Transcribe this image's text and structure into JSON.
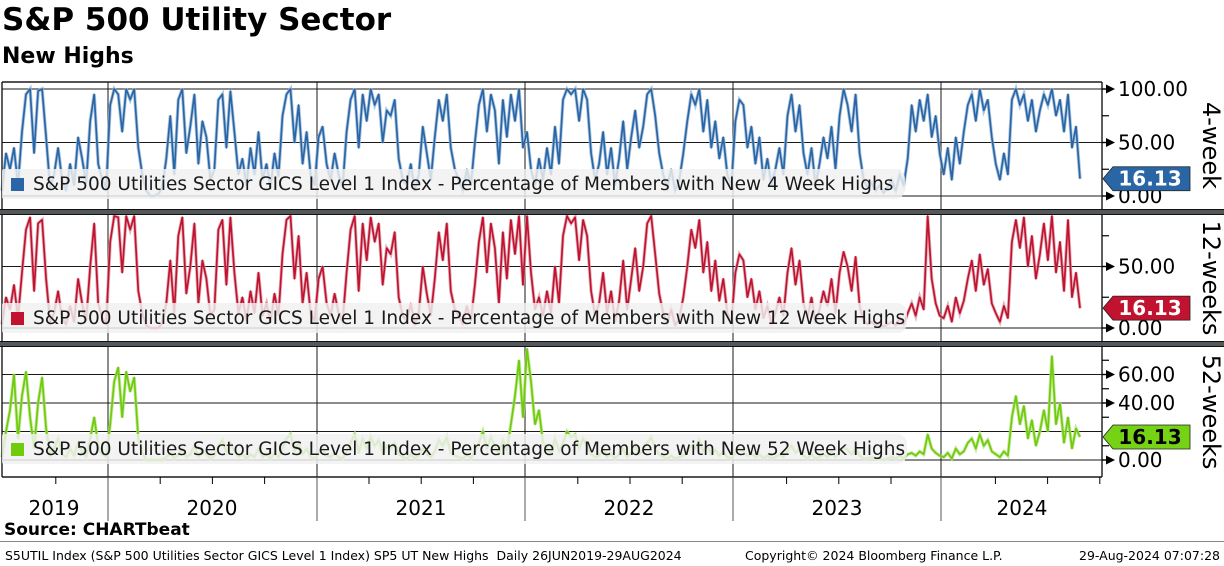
{
  "header": {
    "title": "S&P 500 Utility Sector",
    "subtitle": "New Highs"
  },
  "source_line": "Source: CHARTbeat",
  "footer": {
    "left": "S5UTIL Index (S&P 500 Utilities Sector GICS Level 1 Index) SP5 UT New Highs  Daily 26JUN2019-29AUG2024",
    "center": "Copyright© 2024 Bloomberg Finance L.P.",
    "right": "29-Aug-2024 07:07:28"
  },
  "x_axis": {
    "years": [
      "2019",
      "2020",
      "2021",
      "2022",
      "2023",
      "2024"
    ]
  },
  "chart_data": [
    {
      "type": "line",
      "panel_label": "4-week",
      "legend": "S&P 500 Utilities Sector GICS Level 1 Index - Percentage of Members with New 4 Week Highs",
      "color": "#2a66a5",
      "color_light": "#93b4d6",
      "tag_fill": "#2a66a5",
      "tag_text_color": "#ffffff",
      "last_label": "16.13",
      "last_value": 16.13,
      "ylim": [
        0,
        106
      ],
      "gridlines": [
        0,
        50,
        100
      ],
      "ytick_labels": [
        [
          0,
          "0.00"
        ],
        [
          50,
          "50.00"
        ],
        [
          100,
          "100.00"
        ]
      ],
      "yticks_minor": [
        25,
        75
      ],
      "values": [
        5,
        40,
        25,
        45,
        10,
        60,
        95,
        100,
        40,
        98,
        100,
        55,
        8,
        20,
        45,
        15,
        5,
        30,
        10,
        55,
        35,
        12,
        70,
        95,
        30,
        15,
        8,
        85,
        100,
        95,
        60,
        100,
        90,
        100,
        45,
        20,
        5,
        0,
        0,
        2,
        8,
        35,
        75,
        20,
        90,
        100,
        40,
        65,
        95,
        30,
        70,
        55,
        15,
        25,
        90,
        95,
        45,
        98,
        60,
        20,
        35,
        10,
        45,
        20,
        60,
        15,
        30,
        8,
        40,
        18,
        75,
        95,
        100,
        50,
        85,
        30,
        60,
        20,
        10,
        55,
        65,
        30,
        15,
        40,
        20,
        8,
        60,
        90,
        100,
        45,
        95,
        70,
        100,
        85,
        95,
        50,
        80,
        75,
        90,
        35,
        15,
        10,
        30,
        5,
        20,
        65,
        40,
        15,
        55,
        90,
        70,
        95,
        45,
        25,
        15,
        5,
        25,
        10,
        50,
        85,
        100,
        60,
        95,
        80,
        30,
        90,
        55,
        95,
        70,
        100,
        45,
        60,
        25,
        10,
        35,
        15,
        45,
        20,
        65,
        30,
        90,
        100,
        95,
        100,
        70,
        100,
        90,
        40,
        15,
        30,
        60,
        20,
        45,
        10,
        35,
        70,
        25,
        55,
        80,
        45,
        65,
        95,
        100,
        75,
        40,
        20,
        8,
        25,
        5,
        15,
        40,
        70,
        95,
        85,
        100,
        60,
        90,
        45,
        70,
        35,
        55,
        20,
        10,
        70,
        90,
        85,
        45,
        65,
        30,
        55,
        15,
        35,
        10,
        25,
        45,
        20,
        75,
        95,
        60,
        85,
        40,
        20,
        45,
        10,
        30,
        55,
        35,
        65,
        25,
        75,
        100,
        85,
        60,
        95,
        40,
        15,
        8,
        12,
        5,
        10,
        3,
        8,
        15,
        5,
        20,
        10,
        35,
        85,
        60,
        90,
        70,
        95,
        55,
        75,
        40,
        20,
        45,
        15,
        55,
        30,
        60,
        85,
        95,
        70,
        100,
        80,
        90,
        55,
        30,
        15,
        40,
        20,
        90,
        100,
        85,
        95,
        70,
        90,
        60,
        80,
        95,
        85,
        100,
        75,
        90,
        60,
        95,
        45,
        65,
        16.13
      ]
    },
    {
      "type": "line",
      "panel_label": "12-weeks",
      "legend": "S&P 500 Utilities Sector GICS Level 1 Index - Percentage of Members with New 12 Week Highs",
      "color": "#c1122f",
      "color_light": "#d99aa6",
      "tag_fill": "#c1122f",
      "tag_text_color": "#ffffff",
      "last_label": "16.13",
      "last_value": 16.13,
      "ylim": [
        0,
        92
      ],
      "gridlines": [
        0,
        50
      ],
      "ytick_labels": [
        [
          0,
          "0.00"
        ],
        [
          50,
          "50.00"
        ]
      ],
      "yticks_minor": [
        25,
        75
      ],
      "values": [
        3,
        25,
        15,
        35,
        8,
        45,
        80,
        90,
        30,
        85,
        88,
        40,
        5,
        12,
        30,
        8,
        3,
        18,
        5,
        40,
        20,
        6,
        50,
        85,
        20,
        8,
        4,
        70,
        95,
        90,
        45,
        92,
        80,
        95,
        30,
        12,
        2,
        0,
        0,
        0,
        4,
        20,
        55,
        12,
        75,
        90,
        28,
        50,
        85,
        20,
        55,
        40,
        10,
        15,
        80,
        88,
        35,
        90,
        45,
        12,
        25,
        6,
        30,
        12,
        45,
        10,
        20,
        5,
        28,
        10,
        60,
        88,
        92,
        40,
        75,
        20,
        45,
        12,
        6,
        40,
        50,
        20,
        10,
        28,
        12,
        5,
        45,
        80,
        92,
        30,
        85,
        55,
        90,
        70,
        85,
        35,
        65,
        60,
        78,
        25,
        10,
        6,
        20,
        3,
        12,
        50,
        28,
        10,
        40,
        78,
        55,
        85,
        30,
        15,
        10,
        3,
        18,
        6,
        35,
        70,
        90,
        45,
        85,
        65,
        20,
        78,
        40,
        88,
        60,
        95,
        35,
        95,
        45,
        15,
        25,
        10,
        30,
        12,
        50,
        20,
        75,
        92,
        85,
        90,
        55,
        88,
        75,
        30,
        10,
        20,
        45,
        12,
        30,
        5,
        22,
        55,
        15,
        40,
        65,
        30,
        50,
        85,
        92,
        60,
        28,
        12,
        4,
        15,
        2,
        8,
        25,
        50,
        80,
        65,
        88,
        45,
        70,
        30,
        55,
        22,
        40,
        12,
        5,
        45,
        60,
        55,
        25,
        40,
        15,
        30,
        8,
        18,
        4,
        12,
        25,
        10,
        45,
        65,
        35,
        55,
        20,
        8,
        25,
        4,
        15,
        30,
        18,
        40,
        12,
        45,
        62,
        50,
        30,
        58,
        18,
        6,
        3,
        5,
        2,
        4,
        1,
        3,
        5,
        2,
        8,
        3,
        12,
        20,
        10,
        25,
        15,
        92,
        40,
        20,
        10,
        8,
        18,
        5,
        25,
        12,
        22,
        40,
        55,
        30,
        60,
        35,
        48,
        20,
        12,
        5,
        18,
        8,
        70,
        88,
        65,
        90,
        50,
        75,
        40,
        60,
        85,
        55,
        92,
        45,
        70,
        30,
        88,
        25,
        45,
        16.13
      ]
    },
    {
      "type": "line",
      "panel_label": "52-weeks",
      "legend": "S&P 500 Utilities Sector GICS Level 1 Index - Percentage of Members with New 52 Week Highs",
      "color": "#6fcb0b",
      "color_light": "#b4e27e",
      "tag_fill": "#76d214",
      "tag_text_color": "#000000",
      "last_label": "16.13",
      "last_value": 16.13,
      "ylim": [
        0,
        79
      ],
      "gridlines": [
        0,
        20,
        40,
        60
      ],
      "ytick_labels": [
        [
          0,
          "0.00"
        ],
        [
          40,
          "40.00"
        ],
        [
          60,
          "60.00"
        ]
      ],
      "yticks_minor": [
        10,
        30,
        50,
        70
      ],
      "values": [
        2,
        20,
        35,
        60,
        15,
        45,
        62,
        30,
        8,
        40,
        58,
        22,
        3,
        8,
        15,
        4,
        2,
        8,
        3,
        12,
        6,
        2,
        15,
        30,
        10,
        4,
        2,
        25,
        55,
        65,
        30,
        62,
        48,
        58,
        15,
        5,
        0,
        0,
        0,
        0,
        0,
        2,
        5,
        1,
        4,
        8,
        2,
        4,
        10,
        2,
        6,
        4,
        1,
        3,
        10,
        14,
        5,
        12,
        6,
        2,
        4,
        1,
        4,
        2,
        8,
        2,
        4,
        1,
        5,
        2,
        8,
        15,
        18,
        6,
        12,
        4,
        8,
        2,
        1,
        5,
        8,
        3,
        2,
        5,
        2,
        1,
        6,
        12,
        18,
        5,
        15,
        8,
        16,
        10,
        14,
        5,
        10,
        8,
        12,
        4,
        2,
        1,
        4,
        1,
        3,
        8,
        4,
        2,
        6,
        14,
        10,
        16,
        5,
        3,
        2,
        1,
        4,
        1,
        6,
        12,
        20,
        8,
        16,
        10,
        4,
        14,
        7,
        25,
        45,
        70,
        30,
        78,
        55,
        25,
        35,
        12,
        8,
        4,
        15,
        6,
        12,
        20,
        16,
        18,
        8,
        15,
        10,
        4,
        2,
        3,
        8,
        2,
        5,
        1,
        4,
        8,
        2,
        5,
        10,
        4,
        7,
        12,
        16,
        8,
        4,
        2,
        1,
        3,
        1,
        2,
        3,
        6,
        10,
        8,
        14,
        6,
        10,
        4,
        7,
        3,
        6,
        2,
        1,
        5,
        8,
        6,
        3,
        5,
        2,
        4,
        1,
        3,
        1,
        2,
        4,
        2,
        6,
        10,
        5,
        8,
        3,
        1,
        4,
        1,
        2,
        4,
        2,
        6,
        2,
        6,
        9,
        7,
        4,
        8,
        3,
        1,
        1,
        2,
        1,
        1,
        0,
        1,
        2,
        1,
        3,
        1,
        4,
        5,
        3,
        6,
        4,
        18,
        8,
        5,
        3,
        2,
        5,
        1,
        8,
        4,
        6,
        12,
        15,
        8,
        18,
        10,
        14,
        6,
        4,
        2,
        6,
        3,
        30,
        45,
        25,
        38,
        15,
        28,
        10,
        20,
        35,
        20,
        73,
        25,
        40,
        12,
        30,
        8,
        22,
        16.13
      ]
    }
  ]
}
